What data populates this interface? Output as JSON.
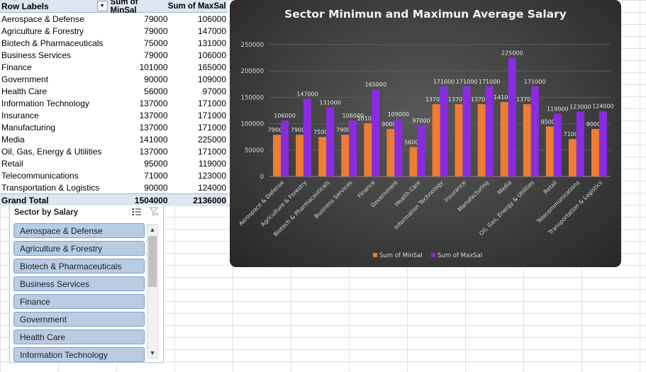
{
  "pivot": {
    "header": {
      "row_labels": "Row Labels",
      "col_min": "Sum of MinSal",
      "col_max": "Sum of MaxSal"
    },
    "rows": [
      {
        "label": "Aerospace & Defense",
        "min": "79000",
        "max": "106000"
      },
      {
        "label": "Agriculture & Forestry",
        "min": "79000",
        "max": "147000"
      },
      {
        "label": "Biotech & Pharmaceuticals",
        "min": "75000",
        "max": "131000"
      },
      {
        "label": "Business Services",
        "min": "79000",
        "max": "106000"
      },
      {
        "label": "Finance",
        "min": "101000",
        "max": "165000"
      },
      {
        "label": "Government",
        "min": "90000",
        "max": "109000"
      },
      {
        "label": "Health Care",
        "min": "56000",
        "max": "97000"
      },
      {
        "label": "Information Technology",
        "min": "137000",
        "max": "171000"
      },
      {
        "label": "Insurance",
        "min": "137000",
        "max": "171000"
      },
      {
        "label": "Manufacturing",
        "min": "137000",
        "max": "171000"
      },
      {
        "label": "Media",
        "min": "141000",
        "max": "225000"
      },
      {
        "label": "Oil, Gas, Energy & Utilities",
        "min": "137000",
        "max": "171000"
      },
      {
        "label": "Retail",
        "min": "95000",
        "max": "119000"
      },
      {
        "label": "Telecommunications",
        "min": "71000",
        "max": "123000"
      },
      {
        "label": "Transportation & Logistics",
        "min": "90000",
        "max": "124000"
      }
    ],
    "total": {
      "label": "Grand Total",
      "min": "1504000",
      "max": "2136000"
    }
  },
  "slicer": {
    "title": "Sector by Salary",
    "items": [
      "Aerospace & Defense",
      "Agriculture & Forestry",
      "Biotech & Pharmaceuticals",
      "Business Services",
      "Finance",
      "Government",
      "Health Care",
      "Information Technology"
    ]
  },
  "chart_data": {
    "type": "bar",
    "title": "Sector Minimun and Maximun Average Salary",
    "categories": [
      "Aerospace & Defense",
      "Agriculture & Forestry",
      "Biotech & Pharmaceuticals",
      "Business Services",
      "Finance",
      "Government",
      "Health Care",
      "Information Technology",
      "Insurance",
      "Manufacturing",
      "Media",
      "Oil, Gas, Energy & Utilities",
      "Retail",
      "Telecommunications",
      "Transportation & Logistics"
    ],
    "series": [
      {
        "name": "Sum of MinSal",
        "color": "#ed7d31",
        "values": [
          79000,
          79000,
          75000,
          79000,
          101000,
          90000,
          56000,
          137000,
          137000,
          137000,
          141000,
          137000,
          95000,
          71000,
          90000
        ]
      },
      {
        "name": "Sum of MaxSal",
        "color": "#8a2be2",
        "values": [
          106000,
          147000,
          131000,
          106000,
          165000,
          109000,
          97000,
          171000,
          171000,
          171000,
          225000,
          171000,
          119000,
          123000,
          124000
        ]
      }
    ],
    "ylim": [
      0,
      250000
    ],
    "yticks": [
      "0",
      "50000",
      "100000",
      "150000",
      "200000",
      "250000"
    ],
    "legend": "bottom",
    "grid": true
  }
}
